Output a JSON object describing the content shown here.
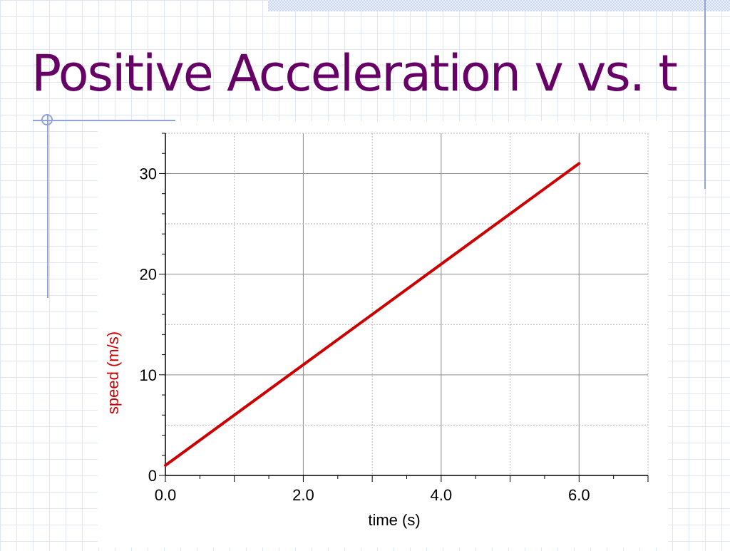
{
  "slide": {
    "title": "Positive Acceleration v vs. t"
  },
  "chart_data": {
    "type": "line",
    "xlabel": "time (s)",
    "ylabel": "speed (m/s)",
    "xlim": [
      0,
      7
    ],
    "ylim": [
      0,
      34
    ],
    "x_ticks": [
      {
        "value": 0,
        "label": "0.0"
      },
      {
        "value": 2,
        "label": "2.0"
      },
      {
        "value": 4,
        "label": "4.0"
      },
      {
        "value": 6,
        "label": "6.0"
      }
    ],
    "y_ticks": [
      {
        "value": 0,
        "label": "0"
      },
      {
        "value": 10,
        "label": "10"
      },
      {
        "value": 20,
        "label": "20"
      },
      {
        "value": 30,
        "label": "30"
      }
    ],
    "grid": true,
    "colors": {
      "series": "#cc0000",
      "ylabel": "#cc0000"
    },
    "series": [
      {
        "x": [
          0,
          6
        ],
        "y": [
          1,
          31
        ]
      }
    ]
  }
}
